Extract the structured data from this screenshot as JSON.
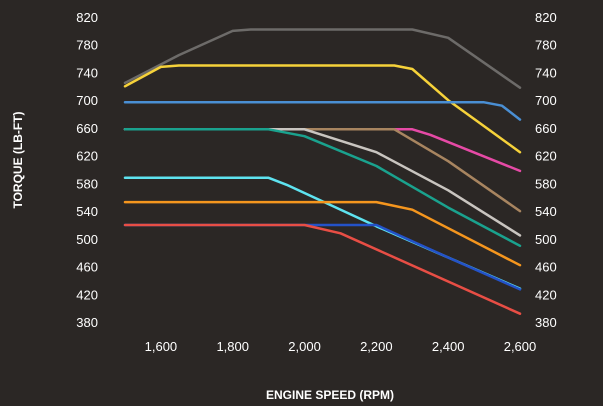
{
  "chart_data": {
    "type": "line",
    "xlabel": "ENGINE SPEED (RPM)",
    "ylabel": "TORQUE (LB-FT)",
    "xlim": [
      1500,
      2600
    ],
    "ylim": [
      380,
      820
    ],
    "x_ticks": [
      1600,
      1800,
      2000,
      2200,
      2400,
      2600
    ],
    "x_tick_labels": [
      "1,600",
      "1,800",
      "2,000",
      "2,200",
      "2,400",
      "2,600"
    ],
    "y_ticks": [
      820,
      780,
      740,
      700,
      660,
      620,
      580,
      540,
      500,
      460,
      420,
      380
    ],
    "y_tick_labels": [
      "820",
      "780",
      "740",
      "700",
      "660",
      "620",
      "580",
      "540",
      "500",
      "460",
      "420",
      "380"
    ],
    "grid": false,
    "legend": "none",
    "series": [
      {
        "color": "#6d6b69",
        "points": [
          [
            1500,
            725
          ],
          [
            1650,
            765
          ],
          [
            1800,
            800
          ],
          [
            1850,
            802
          ],
          [
            2300,
            802
          ],
          [
            2400,
            790
          ],
          [
            2600,
            718
          ]
        ]
      },
      {
        "color": "#f6d23a",
        "points": [
          [
            1500,
            720
          ],
          [
            1600,
            748
          ],
          [
            1650,
            750
          ],
          [
            2250,
            750
          ],
          [
            2300,
            745
          ],
          [
            2400,
            700
          ],
          [
            2600,
            625
          ]
        ]
      },
      {
        "color": "#4a8fd4",
        "points": [
          [
            1500,
            697
          ],
          [
            2500,
            697
          ],
          [
            2550,
            692
          ],
          [
            2600,
            672
          ]
        ]
      },
      {
        "color": "#e64aa6",
        "points": [
          [
            1500,
            658
          ],
          [
            2300,
            658
          ],
          [
            2350,
            650
          ],
          [
            2600,
            598
          ]
        ]
      },
      {
        "color": "#a88560",
        "points": [
          [
            1500,
            658
          ],
          [
            2250,
            658
          ],
          [
            2400,
            612
          ],
          [
            2600,
            540
          ]
        ]
      },
      {
        "color": "#c9c5c0",
        "points": [
          [
            1500,
            658
          ],
          [
            2000,
            658
          ],
          [
            2200,
            625
          ],
          [
            2400,
            570
          ],
          [
            2600,
            505
          ]
        ]
      },
      {
        "color": "#1aa28e",
        "points": [
          [
            1500,
            658
          ],
          [
            1900,
            658
          ],
          [
            2000,
            648
          ],
          [
            2200,
            605
          ],
          [
            2400,
            545
          ],
          [
            2600,
            490
          ]
        ]
      },
      {
        "color": "#5ee3f0",
        "points": [
          [
            1500,
            588
          ],
          [
            1900,
            588
          ],
          [
            1950,
            578
          ],
          [
            2200,
            518
          ],
          [
            2400,
            473
          ],
          [
            2600,
            428
          ]
        ]
      },
      {
        "color": "#f5961e",
        "points": [
          [
            1500,
            553
          ],
          [
            2200,
            553
          ],
          [
            2300,
            542
          ],
          [
            2600,
            462
          ]
        ]
      },
      {
        "color": "#2452c8",
        "points": [
          [
            1500,
            520
          ],
          [
            2200,
            520
          ],
          [
            2400,
            473
          ],
          [
            2600,
            427
          ]
        ]
      },
      {
        "color": "#e84e45",
        "points": [
          [
            1500,
            520
          ],
          [
            2000,
            520
          ],
          [
            2100,
            508
          ],
          [
            2600,
            392
          ]
        ]
      }
    ]
  }
}
